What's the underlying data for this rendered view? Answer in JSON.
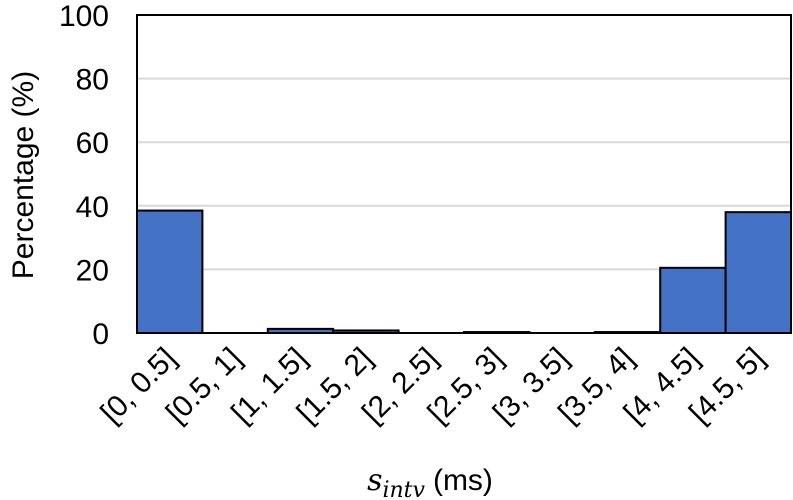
{
  "chart_data": {
    "type": "bar",
    "categories": [
      "[0, 0.5]",
      "[0.5, 1]",
      "[1, 1.5]",
      "[1.5, 2]",
      "[2, 2.5]",
      "[2.5, 3]",
      "[3, 3.5]",
      "[3.5, 4]",
      "[4, 4.5]",
      "[4.5, 5]"
    ],
    "values": [
      38.5,
      0,
      1.3,
      0.8,
      0,
      0.3,
      0,
      0.3,
      20.5,
      38
    ],
    "title": "",
    "ylabel": "Percentage (%)",
    "xlabel": {
      "symbol": "s",
      "subscript": "intv",
      "unit": "(ms)"
    },
    "ylim": [
      0,
      100
    ],
    "yticks": [
      0,
      20,
      40,
      60,
      80,
      100
    ],
    "grid": true,
    "colors": {
      "bar_fill": "#4472C4",
      "bar_stroke": "#000000",
      "grid": "#D9D9D9",
      "axis": "#000000"
    }
  }
}
